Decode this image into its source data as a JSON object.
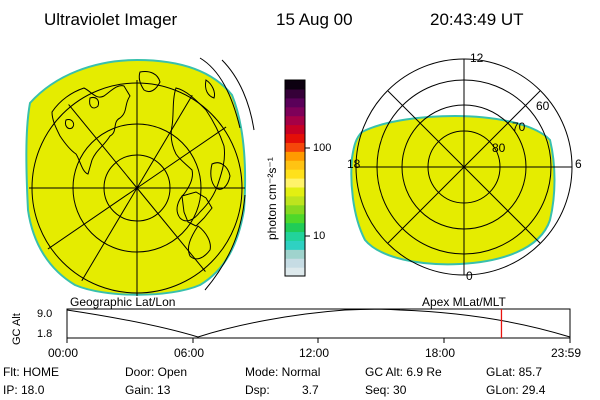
{
  "header": {
    "title": "Ultraviolet Imager",
    "date": "15 Aug 00",
    "time": "20:43:49 UT"
  },
  "colors": {
    "aurora_fill": "#e5ec00",
    "aurora_edge": "#9ed23a",
    "rim": "#38c0ad"
  },
  "geo_panel": {
    "label": "Geographic Lat/Lon"
  },
  "apex_panel": {
    "label": "Apex MLat/MLT",
    "mlt_top": "12",
    "mlt_bottom": "0",
    "mlt_left": "18",
    "mlt_right": "6",
    "lat_60": "60",
    "lat_70": "70",
    "lat_80": "80"
  },
  "colorbar": {
    "unit_label": "photon cm⁻²s⁻¹",
    "tick_100": "100",
    "tick_10": "10",
    "colors": [
      "#dde9ec",
      "#c6dce4",
      "#9fd3cd",
      "#2fd1c2",
      "#22d39b",
      "#20cc57",
      "#4ed82a",
      "#86d920",
      "#bde41e",
      "#e2ef12",
      "#fff36a",
      "#ffe11c",
      "#ffc313",
      "#ff9a00",
      "#f5470a",
      "#e40f08",
      "#c70024",
      "#a50046",
      "#7e0059",
      "#5a0059",
      "#350038",
      "#0c0010"
    ]
  },
  "timeline": {
    "axis_label": "GC Alt",
    "y_top": "9.0",
    "y_bottom": "1.8",
    "ticks": [
      "00:00",
      "06:00",
      "12:00",
      "18:00",
      "23:59"
    ],
    "y_range": [
      1.8,
      9.0
    ],
    "current_hour": 20.73,
    "marker_color": "#e8130e"
  },
  "info": {
    "flt": "Flt: HOME",
    "ip": "IP: 18.0",
    "door": "Door: Open",
    "gain": "Gain: 13",
    "mode": "Mode: Normal",
    "dsp": "Dsp:",
    "dsp_val": "3.7",
    "gcalt": "GC Alt: 6.9 Re",
    "seq": "Seq: 30",
    "glat": "GLat: 85.7",
    "glon": "GLon: 29.4"
  }
}
